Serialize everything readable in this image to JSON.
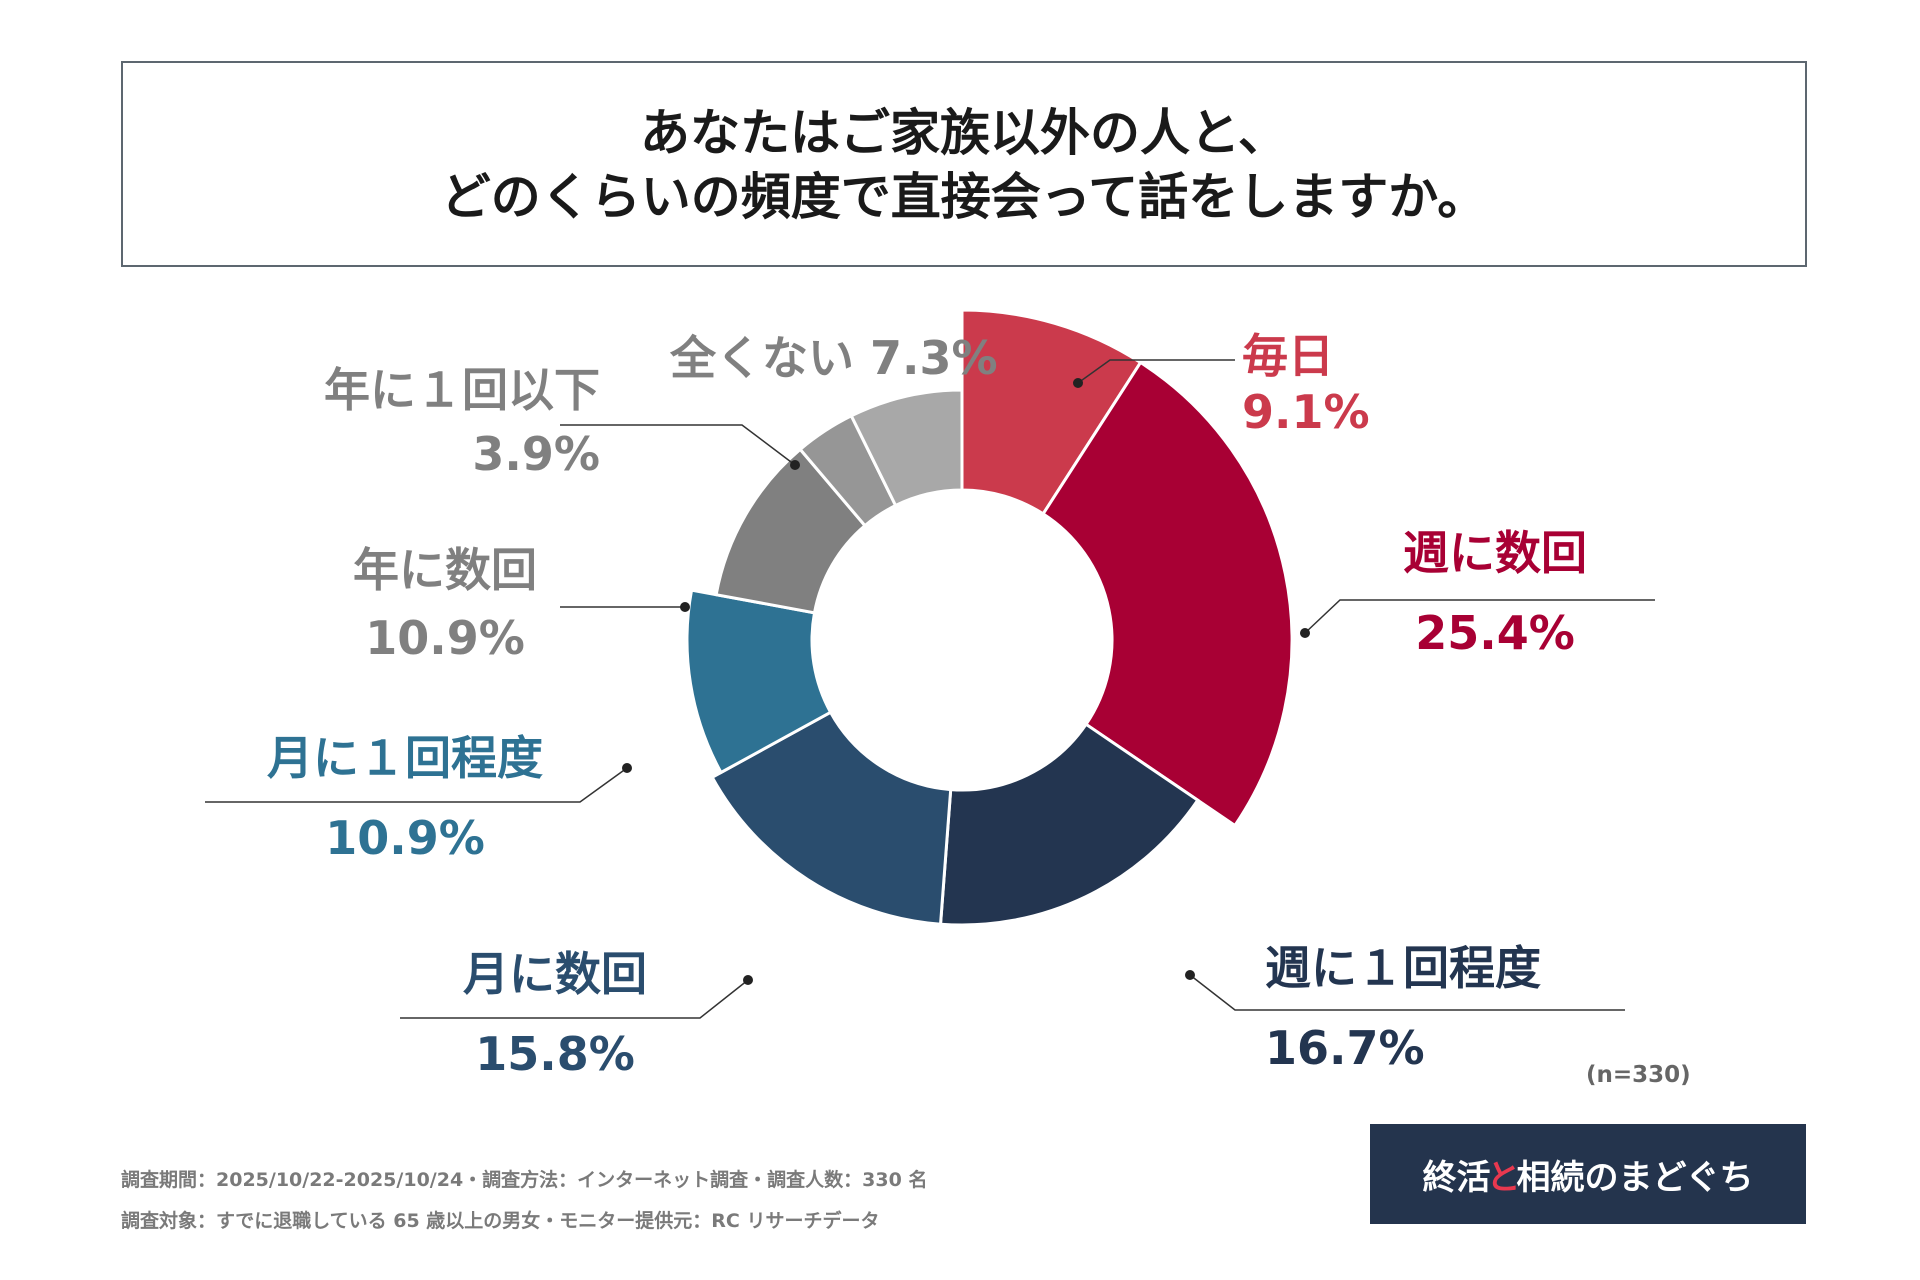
{
  "title": {
    "line1": "あなたはご家族以外の人と、",
    "line2": "どのくらいの頻度で直接会って話をしますか。"
  },
  "chart_data": {
    "type": "pie",
    "title": "あなたはご家族以外の人と、どのくらいの頻度で直接会って話をしますか。",
    "unit": "%",
    "sample_size_label": "(n=330)",
    "slices": [
      {
        "label": "毎日",
        "value": 9.1,
        "value_label": "9.1%",
        "color": "#cb3a4c",
        "text_color": "#cb3a4c"
      },
      {
        "label": "週に数回",
        "value": 25.4,
        "value_label": "25.4%",
        "color": "#a80034",
        "text_color": "#a80034"
      },
      {
        "label": "週に１回程度",
        "value": 16.7,
        "value_label": "16.7%",
        "color": "#233550",
        "text_color": "#233550"
      },
      {
        "label": "月に数回",
        "value": 15.8,
        "value_label": "15.8%",
        "color": "#2a4d6e",
        "text_color": "#2a4d6e"
      },
      {
        "label": "月に１回程度",
        "value": 10.9,
        "value_label": "10.9%",
        "color": "#2e7293",
        "text_color": "#2e7293"
      },
      {
        "label": "年に数回",
        "value": 10.9,
        "value_label": "10.9%",
        "color": "#808080",
        "text_color": "#808080"
      },
      {
        "label": "年に１回以下",
        "value": 3.9,
        "value_label": "3.9%",
        "color": "#969696",
        "text_color": "#808080"
      },
      {
        "label": "全くない",
        "value": 7.3,
        "value_label": "7.3%",
        "color": "#a8a8a8",
        "text_color": "#808080"
      }
    ]
  },
  "footnotes": {
    "line1": "調査期間：2025/10/22-2025/10/24・調査方法：インターネット調査・調査人数：330 名",
    "line2": "調査対象：すでに退職している 65 歳以上の男女・モニター提供元：RC リサーチデータ"
  },
  "logo": {
    "part1": "終活",
    "part2": "と",
    "part3": "相続のまどぐち"
  }
}
